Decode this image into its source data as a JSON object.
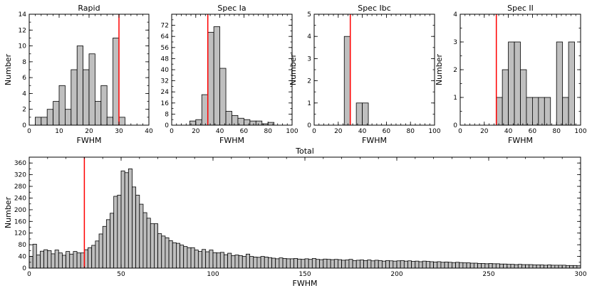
{
  "colors": {
    "bar_fill": "#bfbfbf",
    "bar_stroke": "#000000",
    "marker": "#ff0000"
  },
  "chart_data": [
    {
      "id": "rapid",
      "type": "bar",
      "title": "Rapid",
      "xlabel": "FWHM",
      "ylabel": "Number",
      "xlim": [
        0,
        40
      ],
      "ylim": [
        0,
        14
      ],
      "xticks": [
        0,
        10,
        20,
        30,
        40
      ],
      "yticks": [
        0,
        2,
        4,
        6,
        8,
        10,
        12,
        14
      ],
      "bin_width": 2,
      "bins": [
        [
          2,
          1
        ],
        [
          4,
          1
        ],
        [
          6,
          2
        ],
        [
          8,
          3
        ],
        [
          10,
          5
        ],
        [
          12,
          2
        ],
        [
          14,
          7
        ],
        [
          16,
          10
        ],
        [
          18,
          7
        ],
        [
          20,
          9
        ],
        [
          22,
          3
        ],
        [
          24,
          5
        ],
        [
          26,
          1
        ],
        [
          28,
          11
        ],
        [
          30,
          1
        ]
      ],
      "vline": 30
    },
    {
      "id": "spec_ia",
      "type": "bar",
      "title": "Spec Ia",
      "xlabel": "FWHM",
      "ylabel": "",
      "xlim": [
        0,
        100
      ],
      "ylim": [
        0,
        80
      ],
      "xticks": [
        0,
        20,
        40,
        60,
        80,
        100
      ],
      "yticks": [
        0,
        8,
        16,
        24,
        32,
        40,
        48,
        56,
        64,
        72
      ],
      "bin_width": 5,
      "bins": [
        [
          15,
          3
        ],
        [
          20,
          4
        ],
        [
          25,
          22
        ],
        [
          30,
          67
        ],
        [
          35,
          71
        ],
        [
          40,
          41
        ],
        [
          45,
          10
        ],
        [
          50,
          7
        ],
        [
          55,
          5
        ],
        [
          60,
          4
        ],
        [
          65,
          3
        ],
        [
          70,
          3
        ],
        [
          75,
          1
        ],
        [
          80,
          2
        ]
      ],
      "vline": 30
    },
    {
      "id": "spec_ibc",
      "type": "bar",
      "title": "Spec Ibc",
      "xlabel": "FWHM",
      "ylabel": "Number",
      "xlim": [
        0,
        100
      ],
      "ylim": [
        0,
        5
      ],
      "xticks": [
        0,
        20,
        40,
        60,
        80,
        100
      ],
      "yticks": [
        0,
        1,
        2,
        3,
        4,
        5
      ],
      "bin_width": 5,
      "bins": [
        [
          25,
          4
        ],
        [
          35,
          1
        ],
        [
          40,
          1
        ]
      ],
      "vline": 30
    },
    {
      "id": "spec_ii",
      "type": "bar",
      "title": "Spec II",
      "xlabel": "FWHM",
      "ylabel": "Number",
      "xlim": [
        0,
        100
      ],
      "ylim": [
        0,
        4
      ],
      "xticks": [
        0,
        20,
        40,
        60,
        80,
        100
      ],
      "yticks": [
        0,
        1,
        2,
        3,
        4
      ],
      "bin_width": 5,
      "bins": [
        [
          30,
          1
        ],
        [
          35,
          2
        ],
        [
          40,
          3
        ],
        [
          45,
          3
        ],
        [
          50,
          2
        ],
        [
          55,
          1
        ],
        [
          60,
          1
        ],
        [
          65,
          1
        ],
        [
          70,
          1
        ],
        [
          80,
          3
        ],
        [
          85,
          1
        ],
        [
          90,
          3
        ]
      ],
      "vline": 30
    },
    {
      "id": "total",
      "type": "bar",
      "title": "Total",
      "xlabel": "FWHM",
      "ylabel": "Number",
      "xlim": [
        0,
        300
      ],
      "ylim": [
        0,
        380
      ],
      "xticks": [
        0,
        50,
        100,
        150,
        200,
        250,
        300
      ],
      "yticks": [
        0,
        40,
        80,
        120,
        160,
        200,
        240,
        280,
        320,
        360
      ],
      "bin_width": 2,
      "x_start": 0,
      "values": [
        40,
        82,
        45,
        58,
        63,
        60,
        49,
        62,
        52,
        44,
        57,
        48,
        57,
        52,
        52,
        63,
        70,
        78,
        93,
        117,
        143,
        166,
        188,
        246,
        250,
        333,
        327,
        340,
        278,
        250,
        219,
        190,
        171,
        152,
        152,
        118,
        110,
        104,
        94,
        87,
        85,
        79,
        74,
        70,
        70,
        62,
        57,
        64,
        56,
        62,
        53,
        52,
        54,
        46,
        51,
        43,
        45,
        43,
        40,
        48,
        40,
        38,
        37,
        40,
        38,
        36,
        34,
        32,
        35,
        33,
        32,
        32,
        33,
        31,
        30,
        32,
        30,
        33,
        30,
        29,
        31,
        30,
        29,
        30,
        29,
        27,
        28,
        30,
        26,
        27,
        28,
        26,
        28,
        25,
        27,
        26,
        24,
        26,
        25,
        24,
        25,
        26,
        24,
        25,
        23,
        24,
        22,
        24,
        23,
        22,
        21,
        22,
        20,
        21,
        20,
        19,
        20,
        19,
        18,
        18,
        17,
        17,
        16,
        16,
        15,
        16,
        15,
        15,
        14,
        14,
        13,
        13,
        12,
        13,
        12,
        12,
        12,
        11,
        11,
        11,
        10,
        11,
        10,
        10,
        10,
        10,
        9,
        9,
        9,
        8
      ],
      "vline": 30
    }
  ]
}
